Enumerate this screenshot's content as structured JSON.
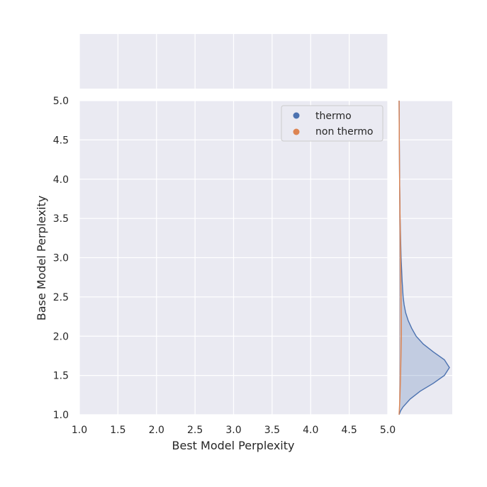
{
  "chart_data": {
    "type": "scatter",
    "subtype": "jointplot",
    "xlabel": "Best Model Perplexity",
    "ylabel": "Base Model Perplexity",
    "xlim": [
      1.0,
      5.0
    ],
    "ylim": [
      1.0,
      5.0
    ],
    "x_ticks": [
      "1.0",
      "1.5",
      "2.0",
      "2.5",
      "3.0",
      "3.5",
      "4.0",
      "4.5",
      "5.0"
    ],
    "y_ticks": [
      "1.0",
      "1.5",
      "2.0",
      "2.5",
      "3.0",
      "3.5",
      "4.0",
      "4.5",
      "5.0"
    ],
    "grid": true,
    "legend_position": "top-right",
    "series": [
      {
        "name": "thermo",
        "color": "#4c72b0",
        "points": [],
        "marginal_y_density": [
          [
            1.0,
            0.0
          ],
          [
            1.05,
            0.03
          ],
          [
            1.1,
            0.08
          ],
          [
            1.2,
            0.22
          ],
          [
            1.3,
            0.42
          ],
          [
            1.4,
            0.68
          ],
          [
            1.5,
            0.9
          ],
          [
            1.6,
            1.0
          ],
          [
            1.7,
            0.9
          ],
          [
            1.8,
            0.68
          ],
          [
            1.9,
            0.48
          ],
          [
            2.0,
            0.34
          ],
          [
            2.1,
            0.25
          ],
          [
            2.2,
            0.18
          ],
          [
            2.3,
            0.13
          ],
          [
            2.4,
            0.1
          ],
          [
            2.5,
            0.08
          ],
          [
            2.7,
            0.06
          ],
          [
            3.0,
            0.04
          ],
          [
            3.5,
            0.02
          ],
          [
            4.0,
            0.01
          ],
          [
            5.0,
            0.0
          ]
        ]
      },
      {
        "name": "non thermo",
        "color": "#dd8452",
        "points": [],
        "marginal_y_density": [
          [
            1.0,
            0.0
          ],
          [
            1.2,
            0.015
          ],
          [
            1.5,
            0.03
          ],
          [
            1.8,
            0.04
          ],
          [
            2.0,
            0.045
          ],
          [
            2.2,
            0.045
          ],
          [
            2.5,
            0.04
          ],
          [
            3.0,
            0.03
          ],
          [
            3.5,
            0.02
          ],
          [
            4.0,
            0.01
          ],
          [
            4.5,
            0.004
          ],
          [
            5.0,
            0.0
          ]
        ]
      }
    ]
  }
}
